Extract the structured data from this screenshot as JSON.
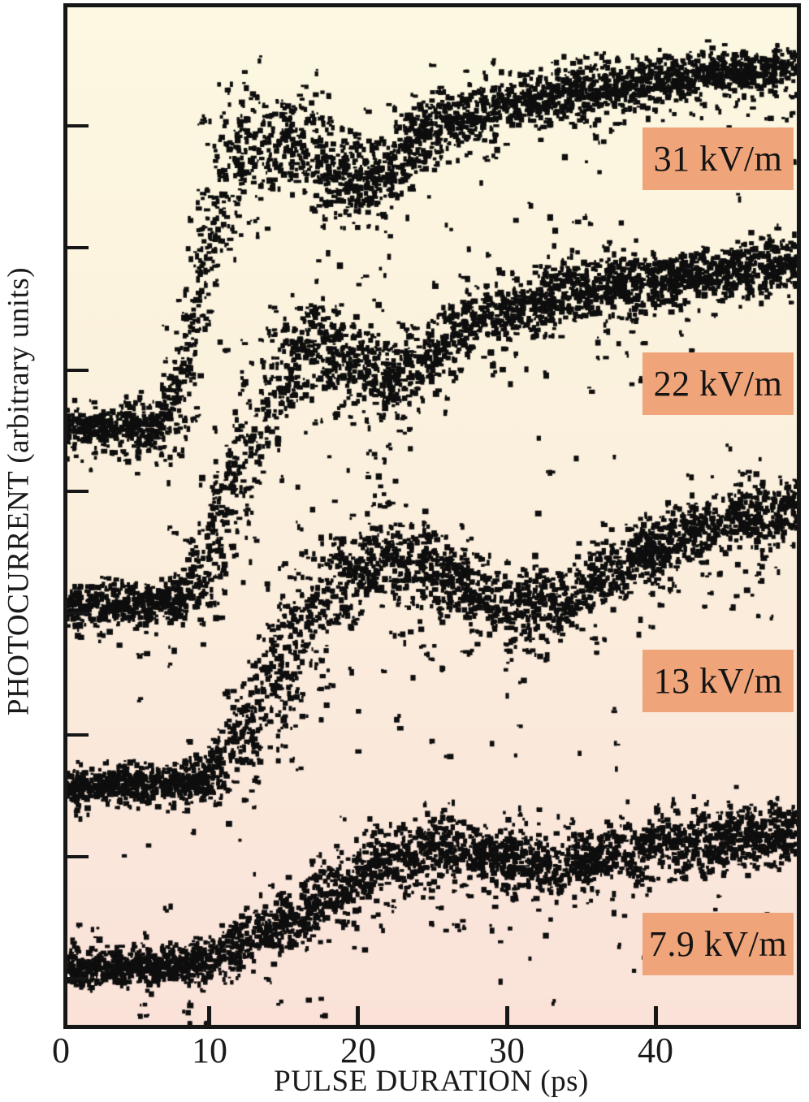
{
  "chart_data": {
    "type": "scatter",
    "title": "",
    "xlabel": "PULSE DURATION (ps)",
    "ylabel": "PHOTOCURRENT (arbitrary units)",
    "x_unit": "ps",
    "x_ticks": [
      0,
      10,
      20,
      30,
      40
    ],
    "x_tick_labels": [
      "0",
      "10",
      "20",
      "30",
      "40"
    ],
    "x_range": [
      0.4,
      49.5
    ],
    "ylim": [
      0,
      10
    ],
    "y_axis_numbered": false,
    "y_tick_units": [
      8.81,
      7.62,
      6.42,
      5.23,
      4.04,
      2.84,
      1.65,
      0.45
    ],
    "grid": false,
    "legend_position": "inline-boxes-right",
    "point_color": "#0e0e0e",
    "label_box_color": "#efa47a",
    "background_top": "#fcf8e1",
    "background_mid": "#fbf0dd",
    "background_bottom": "#fae2d9",
    "frame_color": "#161616",
    "anchor_format": "[pulse_duration_ps, photocurrent_arbitrary_units, noise_sigma_units]",
    "series": [
      {
        "name": "field-31-kv-per-m",
        "label": "31 kV/m",
        "field_kV_per_m": 31,
        "points": 2300,
        "anchors": [
          [
            0.4,
            5.85,
            0.09
          ],
          [
            6.5,
            5.88,
            0.1
          ],
          [
            8,
            6.23,
            0.3
          ],
          [
            9.5,
            7.42,
            0.62
          ],
          [
            11,
            8.38,
            0.46
          ],
          [
            13,
            8.69,
            0.24
          ],
          [
            15.5,
            8.69,
            0.22
          ],
          [
            17.5,
            8.49,
            0.24
          ],
          [
            19.5,
            8.26,
            0.24
          ],
          [
            21.5,
            8.3,
            0.22
          ],
          [
            24,
            8.69,
            0.2
          ],
          [
            26,
            8.85,
            0.16
          ],
          [
            30,
            9.01,
            0.14
          ],
          [
            35,
            9.13,
            0.13
          ],
          [
            40,
            9.25,
            0.12
          ],
          [
            45,
            9.33,
            0.11
          ],
          [
            49.5,
            9.41,
            0.11
          ]
        ]
      },
      {
        "name": "field-22-kv-per-m",
        "label": "22 kV/m",
        "field_kV_per_m": 22,
        "points": 2300,
        "anchors": [
          [
            0.4,
            4.11,
            0.09
          ],
          [
            7.5,
            4.14,
            0.1
          ],
          [
            9.5,
            4.47,
            0.28
          ],
          [
            11.5,
            5.19,
            0.45
          ],
          [
            13.5,
            5.99,
            0.42
          ],
          [
            15.5,
            6.5,
            0.3
          ],
          [
            17.5,
            6.66,
            0.24
          ],
          [
            20,
            6.5,
            0.22
          ],
          [
            22,
            6.31,
            0.22
          ],
          [
            24,
            6.43,
            0.2
          ],
          [
            27,
            6.86,
            0.19
          ],
          [
            30,
            7.02,
            0.18
          ],
          [
            34,
            7.18,
            0.16
          ],
          [
            39,
            7.3,
            0.14
          ],
          [
            44,
            7.38,
            0.14
          ],
          [
            49.5,
            7.48,
            0.14
          ]
        ]
      },
      {
        "name": "field-13-kv-per-m",
        "label": "13 kV/m",
        "field_kV_per_m": 13,
        "points": 2300,
        "anchors": [
          [
            0.4,
            2.34,
            0.09
          ],
          [
            9,
            2.38,
            0.1
          ],
          [
            11,
            2.56,
            0.2
          ],
          [
            13,
            3.04,
            0.34
          ],
          [
            15,
            3.6,
            0.38
          ],
          [
            17,
            4.0,
            0.34
          ],
          [
            19,
            4.35,
            0.27
          ],
          [
            21.5,
            4.55,
            0.23
          ],
          [
            24,
            4.55,
            0.21
          ],
          [
            27,
            4.32,
            0.2
          ],
          [
            30.5,
            4.06,
            0.19
          ],
          [
            33.5,
            4.12,
            0.19
          ],
          [
            37,
            4.43,
            0.17
          ],
          [
            41,
            4.75,
            0.17
          ],
          [
            45,
            4.95,
            0.16
          ],
          [
            49.5,
            5.05,
            0.15
          ]
        ]
      },
      {
        "name": "field-7p9-kv-per-m",
        "label": "7.9 kV/m",
        "field_kV_per_m": 7.9,
        "points": 2300,
        "anchors": [
          [
            0.4,
            0.55,
            0.09
          ],
          [
            8.5,
            0.59,
            0.1
          ],
          [
            12,
            0.77,
            0.13
          ],
          [
            15,
            1.01,
            0.16
          ],
          [
            18,
            1.25,
            0.18
          ],
          [
            21,
            1.53,
            0.18
          ],
          [
            24,
            1.73,
            0.18
          ],
          [
            27,
            1.73,
            0.17
          ],
          [
            30,
            1.62,
            0.17
          ],
          [
            33,
            1.54,
            0.17
          ],
          [
            36,
            1.62,
            0.15
          ],
          [
            40,
            1.77,
            0.15
          ],
          [
            44,
            1.81,
            0.15
          ],
          [
            49.5,
            1.91,
            0.15
          ]
        ]
      }
    ]
  }
}
